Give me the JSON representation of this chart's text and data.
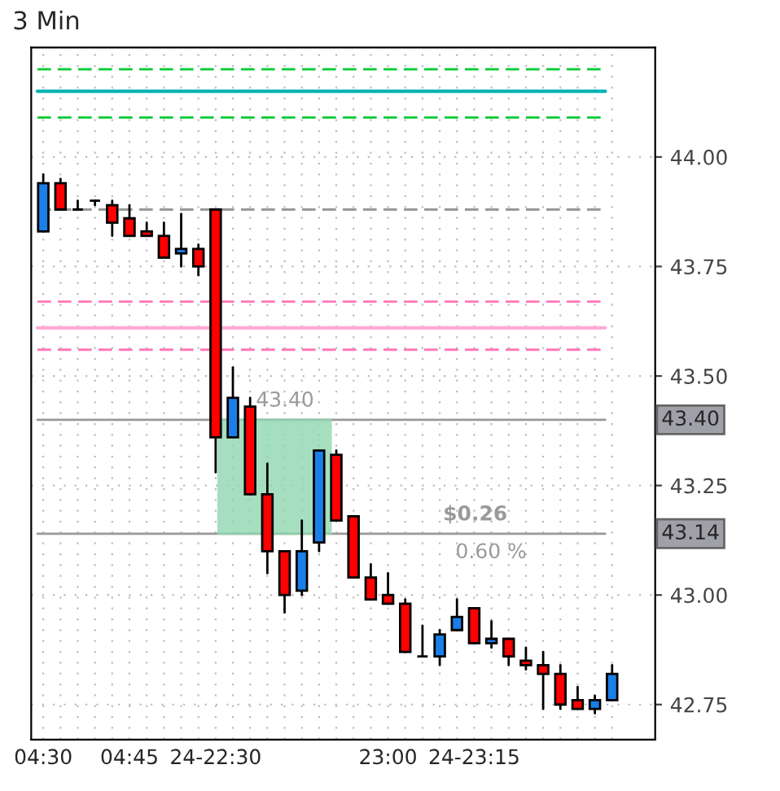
{
  "chart_data": {
    "type": "candlestick",
    "title": "3 Min",
    "categories": [
      "04:30",
      null,
      null,
      null,
      null,
      "04:45",
      null,
      null,
      null,
      null,
      "24-22:30",
      null,
      null,
      null,
      null,
      null,
      null,
      null,
      null,
      null,
      "23:00",
      null,
      null,
      null,
      null,
      "24-23:15",
      null,
      null,
      null,
      null,
      null,
      null,
      null,
      null
    ],
    "ohlc": [
      [
        43.83,
        43.96,
        43.83,
        43.94
      ],
      [
        43.94,
        43.95,
        43.88,
        43.88
      ],
      [
        43.88,
        43.9,
        43.88,
        43.88
      ],
      [
        43.9,
        43.9,
        43.89,
        43.9
      ],
      [
        43.89,
        43.9,
        43.82,
        43.85
      ],
      [
        43.86,
        43.89,
        43.82,
        43.82
      ],
      [
        43.83,
        43.85,
        43.82,
        43.82
      ],
      [
        43.82,
        43.85,
        43.77,
        43.77
      ],
      [
        43.78,
        43.87,
        43.75,
        43.79
      ],
      [
        43.79,
        43.8,
        43.73,
        43.75
      ],
      [
        43.88,
        43.88,
        43.28,
        43.36
      ],
      [
        43.36,
        43.52,
        43.36,
        43.45
      ],
      [
        43.43,
        43.45,
        43.23,
        43.23
      ],
      [
        43.23,
        43.3,
        43.05,
        43.1
      ],
      [
        43.1,
        43.1,
        42.96,
        43.0
      ],
      [
        43.01,
        43.17,
        43.0,
        43.1
      ],
      [
        43.12,
        43.33,
        43.1,
        43.33
      ],
      [
        43.32,
        43.33,
        43.17,
        43.17
      ],
      [
        43.18,
        43.18,
        43.04,
        43.04
      ],
      [
        43.04,
        43.07,
        42.99,
        42.99
      ],
      [
        43.0,
        43.05,
        42.98,
        42.98
      ],
      [
        42.98,
        42.99,
        42.87,
        42.87
      ],
      [
        42.86,
        42.93,
        42.86,
        42.86
      ],
      [
        42.86,
        42.92,
        42.84,
        42.91
      ],
      [
        42.92,
        42.99,
        42.92,
        42.95
      ],
      [
        42.97,
        42.97,
        42.89,
        42.89
      ],
      [
        42.89,
        42.94,
        42.88,
        42.9
      ],
      [
        42.9,
        42.9,
        42.84,
        42.86
      ],
      [
        42.85,
        42.88,
        42.83,
        42.84
      ],
      [
        42.84,
        42.87,
        42.74,
        42.82
      ],
      [
        42.82,
        42.84,
        42.74,
        42.75
      ],
      [
        42.76,
        42.79,
        42.74,
        42.74
      ],
      [
        42.74,
        42.77,
        42.73,
        42.76
      ],
      [
        42.76,
        42.84,
        42.76,
        42.82
      ]
    ],
    "colors": [
      "#1a7fe8",
      "#ff0000",
      "#000000",
      "#000000",
      "#ff0000",
      "#ff0000",
      "#ff0000",
      "#ff0000",
      "#1a7fe8",
      "#ff0000",
      "#ff0000",
      "#1a7fe8",
      "#ff0000",
      "#ff0000",
      "#ff0000",
      "#1a7fe8",
      "#1a7fe8",
      "#ff0000",
      "#ff0000",
      "#ff0000",
      "#ff0000",
      "#ff0000",
      "#000000",
      "#1a7fe8",
      "#1a7fe8",
      "#ff0000",
      "#1a7fe8",
      "#ff0000",
      "#ff0000",
      "#ff0000",
      "#ff0000",
      "#ff0000",
      "#1a7fe8",
      "#1a7fe8"
    ],
    "ylim": [
      42.67,
      44.25
    ],
    "yticks": [
      {
        "value": 42.75,
        "label": "42.75"
      },
      {
        "value": 43.0,
        "label": "43.00"
      },
      {
        "value": 43.25,
        "label": "43.25"
      },
      {
        "value": 43.5,
        "label": "43.50"
      },
      {
        "value": 43.75,
        "label": "43.75"
      },
      {
        "value": 44.0,
        "label": "44.00"
      }
    ],
    "grid": true,
    "ref_lines": [
      {
        "axis": "y",
        "value": 44.2,
        "color": "#00cc33",
        "line_style": "dashed"
      },
      {
        "axis": "y",
        "value": 44.15,
        "color": "#00b4b4",
        "line_style": "solid"
      },
      {
        "axis": "y",
        "value": 44.09,
        "color": "#00cc33",
        "line_style": "dashed"
      },
      {
        "axis": "y",
        "value": 43.88,
        "color": "#999999",
        "line_style": "dashed"
      },
      {
        "axis": "y",
        "value": 43.67,
        "color": "#ff77bb",
        "line_style": "dashed"
      },
      {
        "axis": "y",
        "value": 43.61,
        "color": "#ffaad4",
        "line_style": "solid"
      },
      {
        "axis": "y",
        "value": 43.56,
        "color": "#ff77bb",
        "line_style": "dashed"
      },
      {
        "axis": "y",
        "value": 43.4,
        "label": "43.40",
        "color": "#999999",
        "line_style": "solid"
      },
      {
        "axis": "y",
        "value": 43.14,
        "label": "43.14",
        "color": "#999999",
        "line_style": "solid"
      }
    ],
    "bands": [
      {
        "axis": "y",
        "from": 43.14,
        "to": 43.4,
        "color": "#90d8b0"
      }
    ],
    "annotations": [
      {
        "text": "43.40",
        "y": 43.4
      },
      {
        "text": "$0.26",
        "y": 43.14
      },
      {
        "text": "0.60 %",
        "y": 43.14
      }
    ]
  }
}
